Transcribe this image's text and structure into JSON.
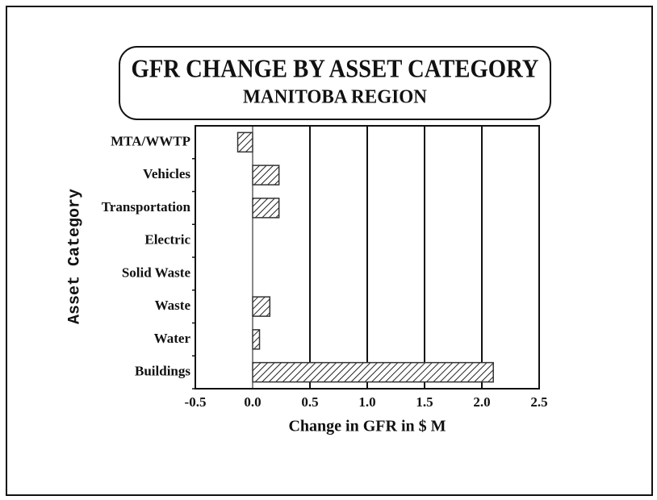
{
  "chart_data": {
    "type": "barh",
    "title": "GFR CHANGE BY ASSET CATEGORY",
    "subtitle": "MANITOBA REGION",
    "x_label": "Change in GFR in $ M",
    "y_label": "Asset Category",
    "categories": [
      "MTA/WWTP",
      "Vehicles",
      "Transportation",
      "Electric",
      "Solid Waste",
      "Waste",
      "Water",
      "Buildings"
    ],
    "values": [
      -0.13,
      0.23,
      0.23,
      0,
      0,
      0.15,
      0.06,
      2.1
    ],
    "color": "#333333",
    "xlim": [
      -0.5,
      2.5
    ],
    "xticks": [
      -0.5,
      {
        "value": 0,
        "label": "0.0"
      },
      0.5,
      {
        "value": 1,
        "label": "1.0"
      },
      1.5,
      {
        "value": 2,
        "label": "2.0"
      },
      2.5
    ],
    "grid": true
  }
}
